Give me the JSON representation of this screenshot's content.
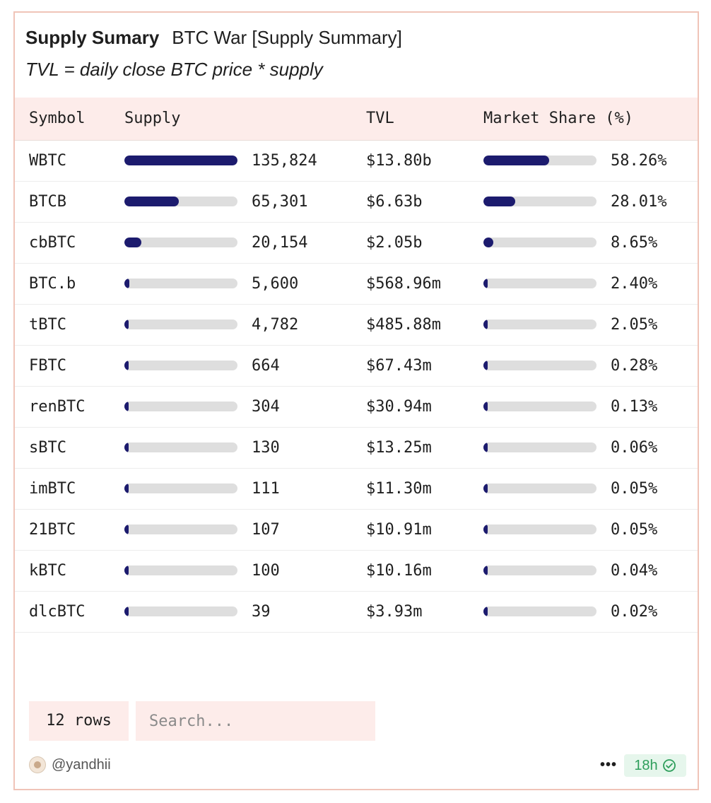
{
  "header": {
    "title": "Supply Sumary",
    "query_name": "BTC War [Supply Summary]",
    "subtitle": "TVL = daily close BTC price * supply"
  },
  "table": {
    "columns": [
      "Symbol",
      "Supply",
      "TVL",
      "Market Share (%)"
    ],
    "rows": [
      {
        "symbol": "WBTC",
        "supply": "135,824",
        "supply_frac": 1.0,
        "tvl": "$13.80b",
        "share": "58.26%",
        "share_frac": 0.5826
      },
      {
        "symbol": "BTCB",
        "supply": "65,301",
        "supply_frac": 0.4808,
        "tvl": "$6.63b",
        "share": "28.01%",
        "share_frac": 0.2801
      },
      {
        "symbol": "cbBTC",
        "supply": "20,154",
        "supply_frac": 0.1484,
        "tvl": "$2.05b",
        "share": "8.65%",
        "share_frac": 0.0865
      },
      {
        "symbol": "BTC.b",
        "supply": "5,600",
        "supply_frac": 0.0412,
        "tvl": "$568.96m",
        "share": "2.40%",
        "share_frac": 0.024
      },
      {
        "symbol": "tBTC",
        "supply": "4,782",
        "supply_frac": 0.0352,
        "tvl": "$485.88m",
        "share": "2.05%",
        "share_frac": 0.0205
      },
      {
        "symbol": "FBTC",
        "supply": "664",
        "supply_frac": 0.0049,
        "tvl": "$67.43m",
        "share": "0.28%",
        "share_frac": 0.0028
      },
      {
        "symbol": "renBTC",
        "supply": "304",
        "supply_frac": 0.0022,
        "tvl": "$30.94m",
        "share": "0.13%",
        "share_frac": 0.0013
      },
      {
        "symbol": "sBTC",
        "supply": "130",
        "supply_frac": 0.001,
        "tvl": "$13.25m",
        "share": "0.06%",
        "share_frac": 0.0006
      },
      {
        "symbol": "imBTC",
        "supply": "111",
        "supply_frac": 0.0008,
        "tvl": "$11.30m",
        "share": "0.05%",
        "share_frac": 0.0005
      },
      {
        "symbol": "21BTC",
        "supply": "107",
        "supply_frac": 0.0008,
        "tvl": "$10.91m",
        "share": "0.05%",
        "share_frac": 0.0005
      },
      {
        "symbol": "kBTC",
        "supply": "100",
        "supply_frac": 0.0007,
        "tvl": "$10.16m",
        "share": "0.04%",
        "share_frac": 0.0004
      },
      {
        "symbol": "dlcBTC",
        "supply": "39",
        "supply_frac": 0.0003,
        "tvl": "$3.93m",
        "share": "0.02%",
        "share_frac": 0.0002
      }
    ]
  },
  "footer": {
    "row_count": "12 rows",
    "search_placeholder": "Search...",
    "author": "@yandhii",
    "more_label": "•••",
    "age": "18h"
  },
  "icons": {
    "avatar": "avatar-icon",
    "verified": "check-circle-icon"
  },
  "colors": {
    "bar_fill": "#1c1b6e",
    "bar_track": "#dedede",
    "header_bg": "#fdecea",
    "card_border": "#f0c4b8",
    "badge_text": "#2e9e5b"
  }
}
